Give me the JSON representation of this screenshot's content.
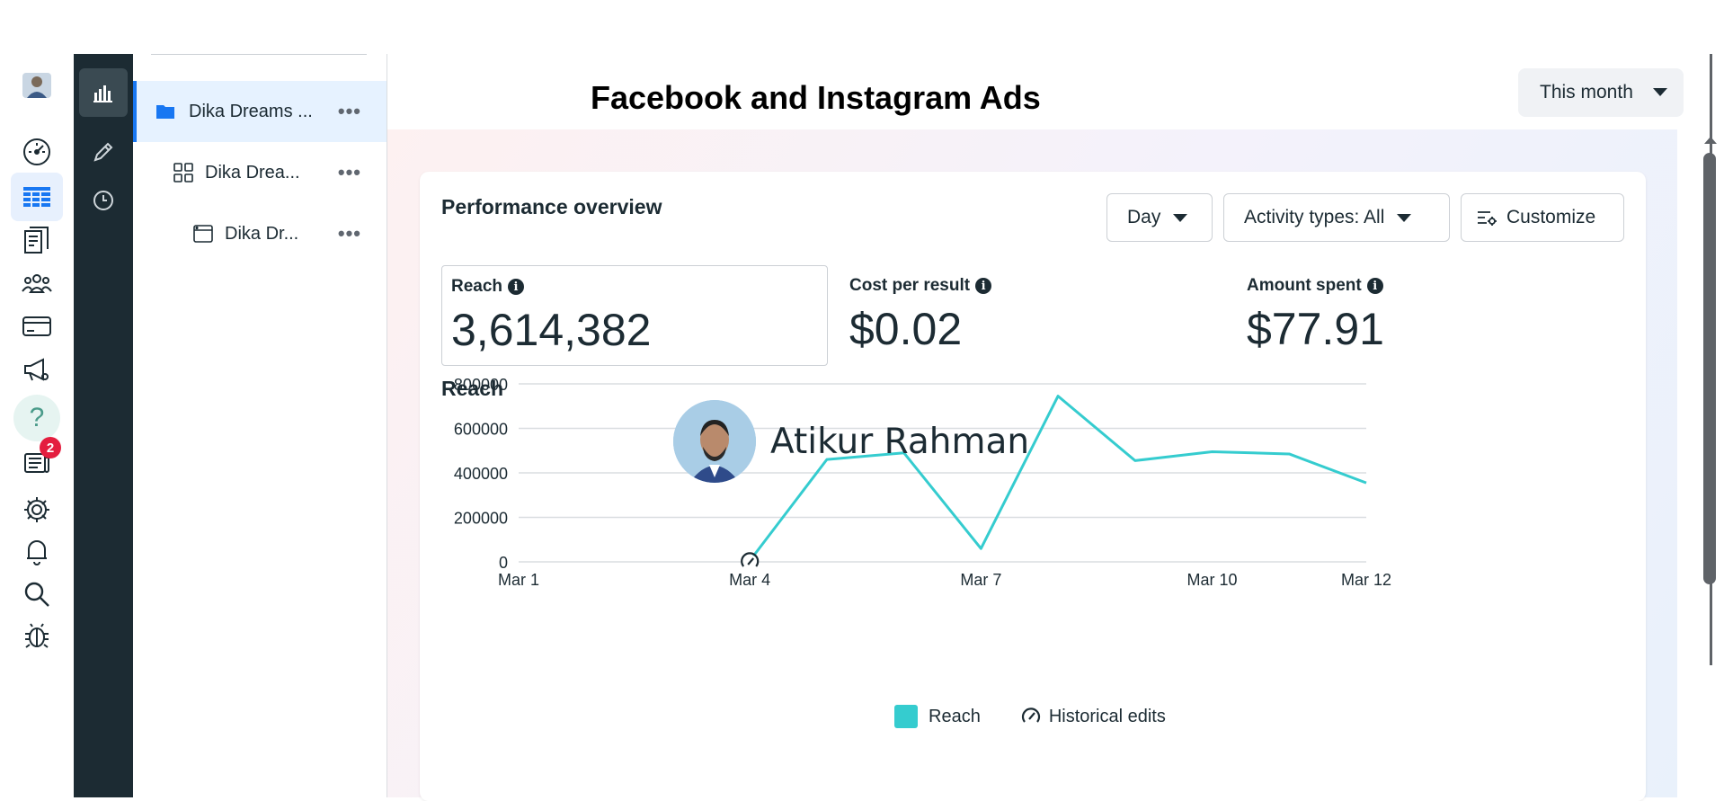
{
  "header": {
    "title": "Facebook and Instagram Ads",
    "date_range": "This month"
  },
  "tree": {
    "items": [
      {
        "label": "Dika Dreams ...",
        "icon": "folder-icon"
      },
      {
        "label": "Dika Drea...",
        "icon": "ad-set-icon"
      },
      {
        "label": "Dika Dr...",
        "icon": "ad-icon"
      }
    ],
    "more_label": "•••"
  },
  "rail": {
    "notification_count": "2"
  },
  "card": {
    "title": "Performance overview",
    "buttons": {
      "day": "Day",
      "activity": "Activity types: All",
      "customize": "Customize"
    },
    "metrics": [
      {
        "label": "Reach",
        "value": "3,614,382"
      },
      {
        "label": "Cost per result",
        "value": "$0.02"
      },
      {
        "label": "Amount spent",
        "value": "$77.91"
      }
    ],
    "chart_title": "Reach"
  },
  "author": {
    "name": "Atikur Rahman"
  },
  "colors": {
    "accent": "#1877f2",
    "series": "#35cccf",
    "dark": "#1c2b33"
  },
  "chart_data": {
    "type": "line",
    "title": "Reach",
    "xlabel": "",
    "ylabel": "",
    "ylim": [
      0,
      800000
    ],
    "yticks": [
      "0",
      "200000",
      "400000",
      "600000",
      "800000"
    ],
    "xticks": [
      "Mar 1",
      "Mar 4",
      "Mar 7",
      "Mar 10",
      "Mar 12"
    ],
    "x": [
      4,
      5,
      6,
      7,
      8,
      9,
      10,
      11,
      12
    ],
    "xrange": [
      1,
      12
    ],
    "series": [
      {
        "name": "Reach",
        "values": [
          5000,
          460000,
          490000,
          60000,
          745000,
          455000,
          495000,
          485000,
          355000
        ]
      }
    ],
    "historical_edits": [
      4
    ],
    "legend": [
      "Reach",
      "Historical edits"
    ]
  }
}
